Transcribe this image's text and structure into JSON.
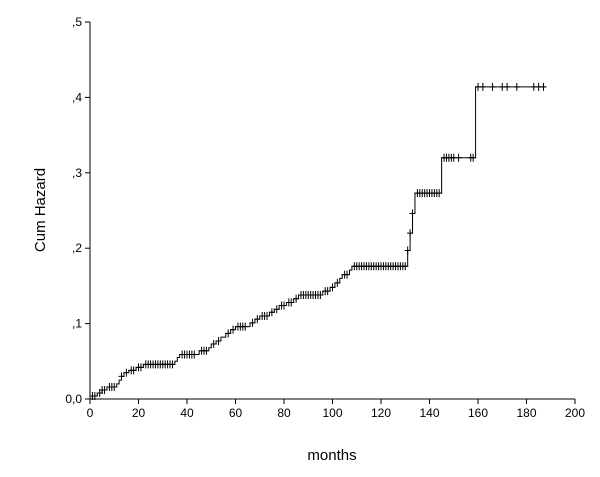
{
  "chart_data": {
    "type": "line",
    "subtype": "step",
    "xlabel": "months",
    "ylabel": "Cum Hazard",
    "xlim": [
      0,
      200
    ],
    "ylim": [
      0,
      0.5
    ],
    "x_ticks": [
      0,
      20,
      40,
      60,
      80,
      100,
      120,
      140,
      160,
      180,
      200
    ],
    "x_tick_labels": [
      "0",
      "20",
      "40",
      "60",
      "80",
      "100",
      "120",
      "140",
      "160",
      "180",
      "200"
    ],
    "y_ticks": [
      0,
      0.1,
      0.2,
      0.3,
      0.4,
      0.5
    ],
    "y_tick_labels": [
      "0,0",
      ",1",
      ",2",
      ",3",
      ",4",
      ",5"
    ],
    "grid": false,
    "line_color": "#000000",
    "steps": [
      [
        0,
        0.0
      ],
      [
        1,
        0.004
      ],
      [
        3,
        0.008
      ],
      [
        5,
        0.012
      ],
      [
        7,
        0.016
      ],
      [
        11,
        0.02
      ],
      [
        12,
        0.025
      ],
      [
        13,
        0.03
      ],
      [
        14,
        0.035
      ],
      [
        16,
        0.038
      ],
      [
        19,
        0.042
      ],
      [
        22,
        0.046
      ],
      [
        35,
        0.05
      ],
      [
        36,
        0.055
      ],
      [
        37,
        0.059
      ],
      [
        45,
        0.064
      ],
      [
        49,
        0.068
      ],
      [
        50,
        0.073
      ],
      [
        52,
        0.077
      ],
      [
        54,
        0.082
      ],
      [
        56,
        0.087
      ],
      [
        58,
        0.092
      ],
      [
        60,
        0.096
      ],
      [
        66,
        0.101
      ],
      [
        68,
        0.106
      ],
      [
        70,
        0.11
      ],
      [
        74,
        0.115
      ],
      [
        76,
        0.119
      ],
      [
        78,
        0.124
      ],
      [
        81,
        0.128
      ],
      [
        84,
        0.133
      ],
      [
        86,
        0.138
      ],
      [
        96,
        0.143
      ],
      [
        99,
        0.148
      ],
      [
        101,
        0.154
      ],
      [
        103,
        0.16
      ],
      [
        104,
        0.165
      ],
      [
        107,
        0.171
      ],
      [
        108,
        0.176
      ],
      [
        131,
        0.197
      ],
      [
        132,
        0.22
      ],
      [
        133,
        0.246
      ],
      [
        134,
        0.273
      ],
      [
        145,
        0.32
      ],
      [
        159,
        0.414
      ],
      [
        188,
        0.414
      ]
    ],
    "censored_x": [
      1,
      2,
      4,
      5,
      6,
      8,
      9,
      10,
      13,
      15,
      17,
      18,
      20,
      21,
      23,
      24,
      25,
      26,
      27,
      28,
      29,
      30,
      31,
      32,
      33,
      34,
      38,
      39,
      40,
      41,
      42,
      43,
      46,
      47,
      48,
      51,
      53,
      57,
      59,
      61,
      62,
      63,
      64,
      67,
      69,
      71,
      72,
      73,
      75,
      77,
      79,
      80,
      82,
      83,
      85,
      87,
      88,
      89,
      90,
      91,
      92,
      93,
      94,
      95,
      97,
      98,
      100,
      102,
      105,
      106,
      109,
      110,
      111,
      112,
      113,
      114,
      115,
      116,
      117,
      118,
      119,
      120,
      121,
      122,
      123,
      124,
      125,
      126,
      127,
      128,
      129,
      130,
      131,
      132,
      133,
      135,
      136,
      137,
      138,
      139,
      140,
      141,
      142,
      143,
      144,
      146,
      147,
      148,
      149,
      150,
      152,
      157,
      158,
      160,
      162,
      166,
      170,
      172,
      176,
      183,
      185,
      187
    ]
  }
}
